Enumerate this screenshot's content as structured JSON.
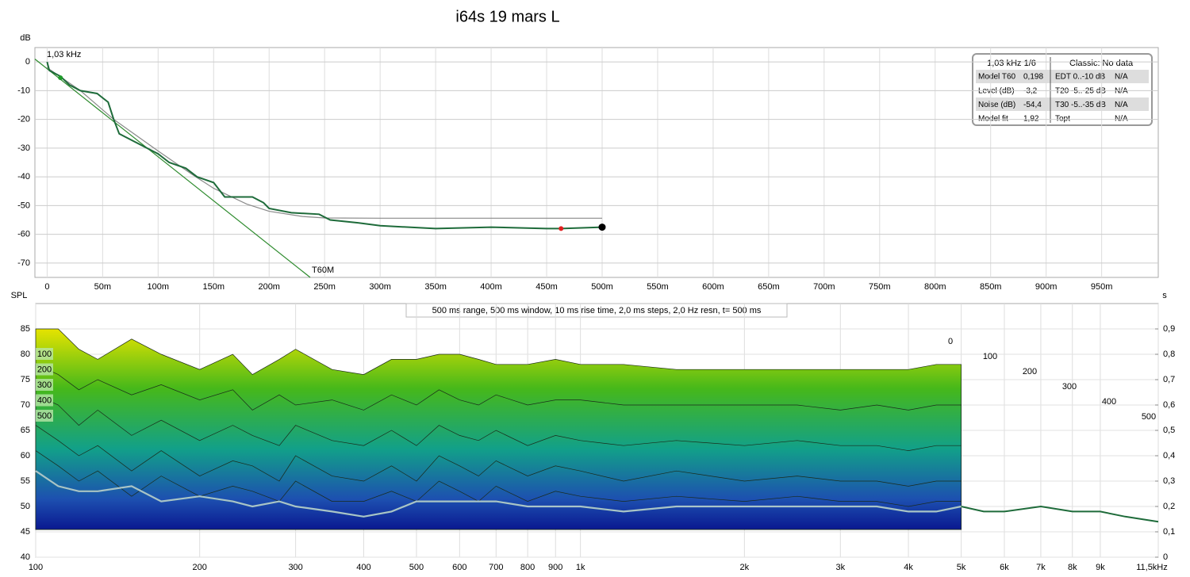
{
  "chart_data": [
    {
      "type": "line",
      "title": "i64s 19 mars L",
      "ylabel": "dB",
      "xlim": [
        -11,
        1001
      ],
      "ylim": [
        -75,
        5
      ],
      "xticks": [
        0,
        {
          "value": 50,
          "label": "50m"
        },
        {
          "value": 100,
          "label": "100m"
        },
        {
          "value": 150,
          "label": "150m"
        },
        {
          "value": 200,
          "label": "200m"
        },
        {
          "value": 250,
          "label": "250m"
        },
        {
          "value": 300,
          "label": "300m"
        },
        {
          "value": 350,
          "label": "350m"
        },
        {
          "value": 400,
          "label": "400m"
        },
        {
          "value": 450,
          "label": "450m"
        },
        {
          "value": 500,
          "label": "500m"
        },
        {
          "value": 550,
          "label": "550m"
        },
        {
          "value": 600,
          "label": "600m"
        },
        {
          "value": 650,
          "label": "650m"
        },
        {
          "value": 700,
          "label": "700m"
        },
        {
          "value": 750,
          "label": "750m"
        },
        {
          "value": 800,
          "label": "800m"
        },
        {
          "value": 850,
          "label": "850m"
        },
        {
          "value": 900,
          "label": "900m"
        },
        {
          "value": 950,
          "label": "950m"
        }
      ],
      "yticks": [
        0,
        -10,
        -20,
        -30,
        -40,
        -50,
        -60,
        -70
      ],
      "grid": true,
      "series": [
        {
          "name": "T60M",
          "color": "#2e8b2e",
          "x": [
            -11,
            237
          ],
          "values": [
            1,
            -75
          ]
        },
        {
          "color": "#8a8a8a",
          "x": [
            0,
            30,
            60,
            100,
            130,
            150,
            180,
            200,
            230,
            250,
            300,
            500
          ],
          "values": [
            -2,
            -10,
            -20,
            -31,
            -39,
            -44,
            -49.5,
            -52,
            -53.8,
            -54.3,
            -54.4,
            -54.4
          ]
        },
        {
          "color": "#1e6b3a",
          "x": [
            0,
            2,
            12,
            20,
            30,
            45,
            55,
            60,
            65,
            80,
            100,
            110,
            125,
            135,
            150,
            160,
            185,
            195,
            200,
            220,
            245,
            255,
            280,
            300,
            350,
            400,
            450,
            463,
            500
          ],
          "values": [
            0,
            -3,
            -5,
            -8,
            -10,
            -11,
            -14,
            -20,
            -25,
            -28,
            -32,
            -35,
            -37,
            -40,
            -42,
            -47,
            -47,
            -49,
            -51,
            -52.5,
            -53,
            -55,
            -56,
            -57,
            -58,
            -57.5,
            -58,
            -58,
            -57.5
          ]
        }
      ],
      "points": [
        {
          "x": 12,
          "y": -5.5,
          "color": "#1f9a2a"
        },
        {
          "x": 463,
          "y": -58,
          "color": "#e02020"
        },
        {
          "x": 500,
          "y": -57.5,
          "color": "#000000"
        }
      ],
      "annotation": "1,03 kHz",
      "info_table": {
        "header": [
          "1,03 kHz 1/6",
          "Classic: No data"
        ],
        "rows": [
          [
            "Model T60",
            "0,198",
            "EDT  0..-10 dB",
            "N/A"
          ],
          [
            "Level (dB)",
            "-3,2",
            "T20 -5..-25 dB",
            "N/A"
          ],
          [
            "Noise (dB)",
            "-54,4",
            "T30 -5..-35 dB",
            "N/A"
          ],
          [
            "Model fit",
            "1,92",
            "Topt",
            "N/A"
          ]
        ]
      }
    },
    {
      "type": "waterfall",
      "subtitle": "500 ms range, 500 ms window, 10 ms rise time, 2,0 ms steps,  2,0 Hz resn, t= 500 ms",
      "ylabel": "SPL",
      "y2label": "s",
      "xscale": "log",
      "xlim": [
        100,
        11500
      ],
      "ylim": [
        40,
        90
      ],
      "y2lim": [
        0,
        1
      ],
      "xticks": [
        100,
        200,
        300,
        400,
        500,
        600,
        700,
        800,
        900,
        {
          "value": 1000,
          "label": "1k"
        },
        {
          "value": 2000,
          "label": "2k"
        },
        {
          "value": 3000,
          "label": "3k"
        },
        {
          "value": 4000,
          "label": "4k"
        },
        {
          "value": 5000,
          "label": "5k"
        },
        {
          "value": 6000,
          "label": "6k"
        },
        {
          "value": 7000,
          "label": "7k"
        },
        {
          "value": 8000,
          "label": "8k"
        },
        {
          "value": 9000,
          "label": "9k"
        },
        {
          "value": 11500,
          "label": "11,5kHz"
        }
      ],
      "yticks": [
        40,
        45,
        50,
        55,
        60,
        65,
        70,
        75,
        80,
        85
      ],
      "y2ticks": [
        0,
        {
          "value": 0.1,
          "label": "0,1"
        },
        {
          "value": 0.2,
          "label": "0,2"
        },
        {
          "value": 0.3,
          "label": "0,3"
        },
        {
          "value": 0.4,
          "label": "0,4"
        },
        {
          "value": 0.5,
          "label": "0,5"
        },
        {
          "value": 0.6,
          "label": "0,6"
        },
        {
          "value": 0.7,
          "label": "0,7"
        },
        {
          "value": 0.8,
          "label": "0,8"
        },
        {
          "value": 0.9,
          "label": "0,9"
        }
      ],
      "grid": true,
      "x": [
        100,
        110,
        120,
        130,
        150,
        170,
        200,
        230,
        250,
        280,
        300,
        350,
        400,
        450,
        500,
        550,
        600,
        650,
        700,
        800,
        900,
        1000,
        1200,
        1500,
        2000,
        2500,
        3000,
        3500,
        4000,
        4500,
        5000,
        5500,
        6000,
        7000,
        8000,
        9000,
        10000,
        11500
      ],
      "series": [
        {
          "name": "0",
          "values": [
            85,
            85,
            81,
            79,
            83,
            80,
            77,
            80,
            76,
            79,
            81,
            77,
            76,
            79,
            79,
            80,
            80,
            79,
            78,
            78,
            79,
            78,
            78,
            77,
            77,
            77,
            77,
            77,
            77,
            78,
            78,
            null,
            null,
            null,
            null,
            null,
            null,
            null
          ]
        },
        {
          "name": "100",
          "values": [
            78,
            76,
            73,
            75,
            72,
            74,
            71,
            73,
            69,
            72,
            70,
            71,
            69,
            72,
            70,
            73,
            71,
            70,
            72,
            70,
            71,
            71,
            70,
            70,
            70,
            70,
            69,
            70,
            69,
            70,
            70,
            null,
            null,
            null,
            null,
            null,
            null,
            null
          ]
        },
        {
          "name": "200",
          "values": [
            72,
            70,
            66,
            69,
            64,
            67,
            63,
            66,
            64,
            62,
            66,
            63,
            62,
            65,
            62,
            66,
            64,
            63,
            65,
            62,
            64,
            63,
            62,
            63,
            62,
            63,
            62,
            62,
            61,
            62,
            62,
            null,
            null,
            null,
            null,
            null,
            null,
            null
          ]
        },
        {
          "name": "300",
          "values": [
            66,
            63,
            60,
            62,
            57,
            61,
            56,
            59,
            58,
            55,
            60,
            56,
            55,
            58,
            55,
            60,
            58,
            56,
            59,
            56,
            58,
            57,
            55,
            57,
            55,
            56,
            55,
            55,
            54,
            55,
            55,
            null,
            null,
            null,
            null,
            null,
            null,
            null
          ]
        },
        {
          "name": "400",
          "values": [
            61,
            58,
            55,
            57,
            52,
            56,
            52,
            54,
            53,
            51,
            55,
            51,
            51,
            53,
            51,
            55,
            53,
            51,
            54,
            51,
            53,
            52,
            51,
            52,
            51,
            52,
            51,
            51,
            50,
            51,
            51,
            null,
            null,
            null,
            null,
            null,
            null,
            null
          ]
        },
        {
          "name": "500",
          "color": "#1e6b3a",
          "values": [
            57,
            54,
            53,
            53,
            54,
            51,
            52,
            51,
            50,
            51,
            50,
            49,
            48,
            49,
            51,
            51,
            51,
            51,
            51,
            50,
            50,
            50,
            49,
            50,
            50,
            50,
            50,
            50,
            49,
            49,
            50,
            49,
            49,
            50,
            49,
            49,
            48,
            47
          ]
        }
      ]
    }
  ]
}
